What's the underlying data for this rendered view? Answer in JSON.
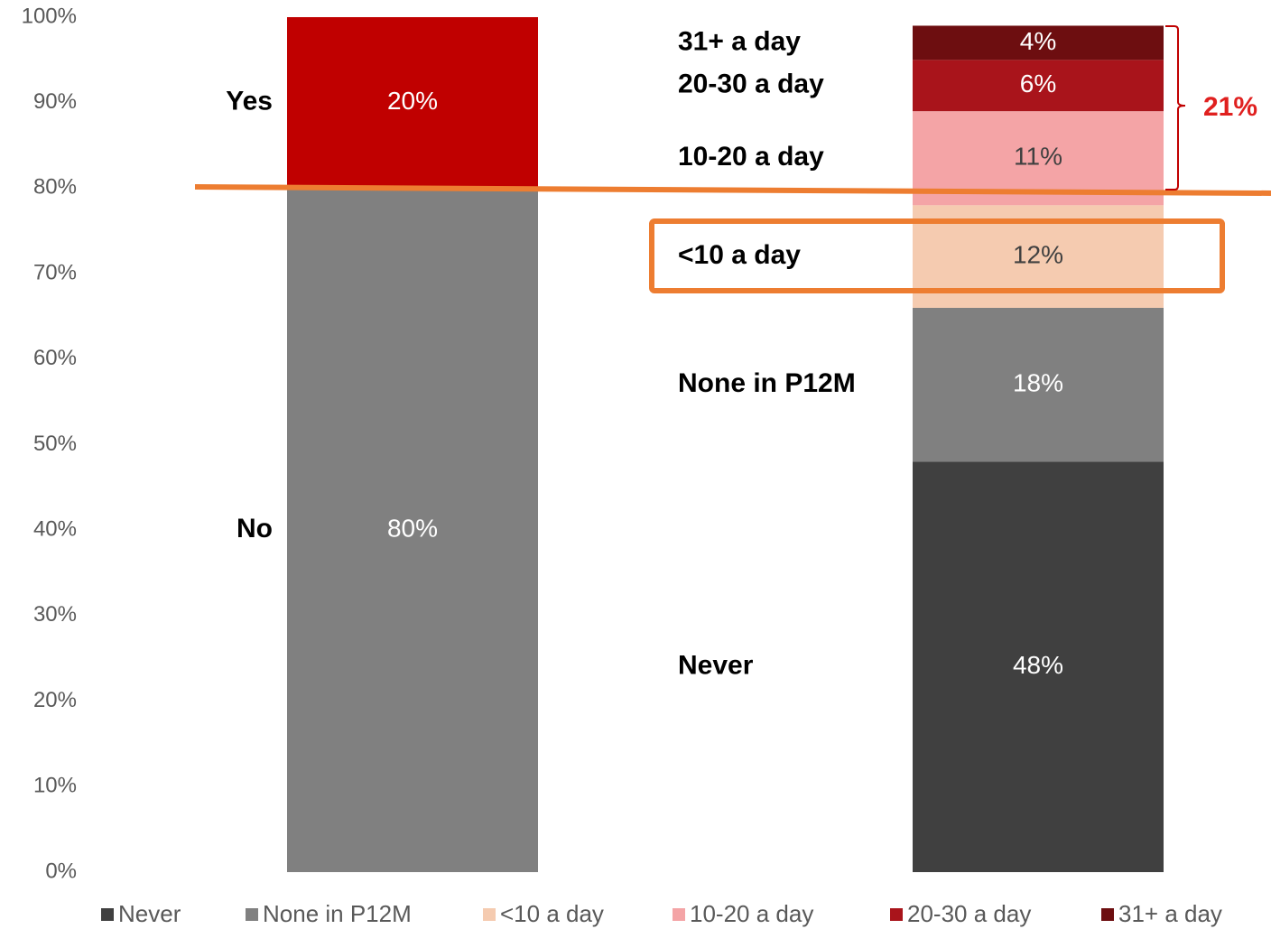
{
  "chart_data": {
    "type": "stacked_bar",
    "ylim": [
      0,
      100
    ],
    "yticks": [
      {
        "value": 0,
        "label": "0%"
      },
      {
        "value": 10,
        "label": "10%"
      },
      {
        "value": 20,
        "label": "20%"
      },
      {
        "value": 30,
        "label": "30%"
      },
      {
        "value": 40,
        "label": "40%"
      },
      {
        "value": 50,
        "label": "50%"
      },
      {
        "value": 60,
        "label": "60%"
      },
      {
        "value": 70,
        "label": "70%"
      },
      {
        "value": 80,
        "label": "80%"
      },
      {
        "value": 90,
        "label": "90%"
      },
      {
        "value": 100,
        "label": "100%"
      }
    ],
    "stacks": [
      {
        "segments": [
          {
            "name": "No",
            "color": "#808080",
            "value": 80,
            "value_label": "80%"
          },
          {
            "name": "Yes",
            "color": "#c00000",
            "value": 20,
            "value_label": "20%"
          }
        ]
      },
      {
        "segments": [
          {
            "name": "Never",
            "color": "#404040",
            "value": 48,
            "value_label": "48%"
          },
          {
            "name": "None in P12M",
            "color": "#808080",
            "value": 18,
            "value_label": "18%"
          },
          {
            "name": "<10 a day",
            "color": "#f5cbb0",
            "value": 12,
            "value_label": "12%"
          },
          {
            "name": "10-20 a day",
            "color": "#f4a4a6",
            "value": 11,
            "value_label": "11%"
          },
          {
            "name": "20-30 a day",
            "color": "#a9141b",
            "value": 6,
            "value_label": "6%"
          },
          {
            "name": "31+ a day",
            "color": "#6d0e10",
            "value": 4,
            "value_label": "4%"
          }
        ]
      }
    ],
    "legend": "bottom",
    "annotation": {
      "text": "21%",
      "color": "#e0201f"
    }
  }
}
